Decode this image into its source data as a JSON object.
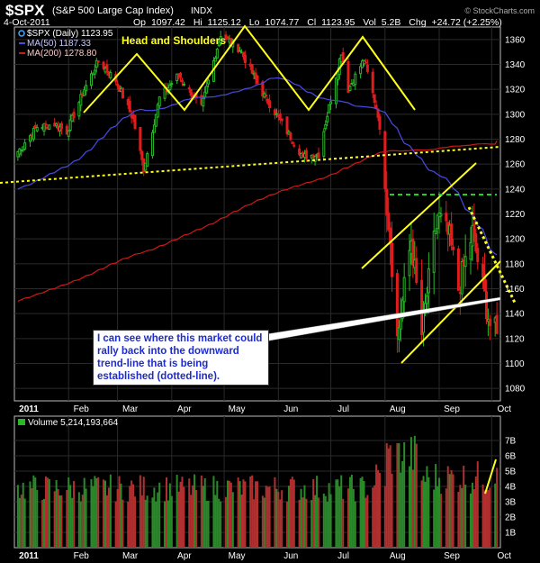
{
  "header": {
    "symbol": "$SPX",
    "name": "(S&P 500 Large Cap Index)",
    "exchange": "INDX",
    "date": "4-Oct-2011",
    "op_label": "Op",
    "op": "1097.42",
    "hi_label": "Hi",
    "hi": "1125.12",
    "lo_label": "Lo",
    "lo": "1074.77",
    "cl_label": "Cl",
    "cl": "1123.95",
    "vol_label": "Vol",
    "vol": "5.2B",
    "chg_label": "Chg",
    "chg": "+24.72 (+2.25%)",
    "watermark": "© StockCharts.com"
  },
  "legend": {
    "price": "$SPX (Daily) 1123.95",
    "ma50": "MA(50) 1187.33",
    "ma200": "MA(200) 1278.80",
    "volume": "Volume 5,214,193,664"
  },
  "colors": {
    "up": "#29b829",
    "down": "#e01c1c",
    "ma50": "#4a4ae6",
    "ma200": "#d01818",
    "annotation": "#ffff1a",
    "support": "#21d321",
    "grid": "#2a2a2a",
    "axis_text": "#ffffff"
  },
  "annotations": {
    "pattern_label": "Head and Shoulders",
    "note": "I can see where this market could rally back into the downward trend-line that is being established (dotted-line)."
  },
  "chart_data": [
    {
      "type": "candlestick",
      "title": "$SPX (S&P 500 Large Cap Index) INDX",
      "x_labels": [
        "2011",
        "Feb",
        "Mar",
        "Apr",
        "May",
        "Jun",
        "Jul",
        "Aug",
        "Sep",
        "Oct"
      ],
      "y_ticks": [
        1080,
        1100,
        1120,
        1140,
        1160,
        1180,
        1200,
        1220,
        1240,
        1260,
        1280,
        1300,
        1320,
        1340,
        1360
      ],
      "ylim": [
        1070,
        1370
      ],
      "series": [
        {
          "name": "$SPX (Daily)",
          "x": [
            "2011-01-03",
            "2011-01-14",
            "2011-01-24",
            "2011-01-31",
            "2011-02-10",
            "2011-02-18",
            "2011-02-28",
            "2011-03-10",
            "2011-03-16",
            "2011-03-25",
            "2011-04-05",
            "2011-04-18",
            "2011-04-29",
            "2011-05-10",
            "2011-05-23",
            "2011-06-06",
            "2011-06-15",
            "2011-06-24",
            "2011-07-07",
            "2011-07-11",
            "2011-07-20",
            "2011-07-28",
            "2011-08-04",
            "2011-08-08",
            "2011-08-16",
            "2011-08-22",
            "2011-08-31",
            "2011-09-07",
            "2011-09-12",
            "2011-09-20",
            "2011-09-30",
            "2011-10-04"
          ],
          "close": [
            1270,
            1290,
            1292,
            1286,
            1320,
            1343,
            1327,
            1296,
            1256,
            1313,
            1332,
            1305,
            1364,
            1352,
            1317,
            1286,
            1266,
            1268,
            1350,
            1320,
            1344,
            1300,
            1200,
            1120,
            1200,
            1123,
            1219,
            1200,
            1160,
            1205,
            1131,
            1124
          ]
        },
        {
          "name": "MA(50)",
          "last": 1187.33
        },
        {
          "name": "MA(200)",
          "last": 1278.8
        }
      ]
    },
    {
      "type": "bar",
      "title": "Volume 5,214,193,664",
      "y_ticks_labels": [
        "1B",
        "2B",
        "3B",
        "4B",
        "5B",
        "6B",
        "7B"
      ],
      "ylim": [
        0,
        8000000000
      ],
      "last": 5214193664
    }
  ]
}
